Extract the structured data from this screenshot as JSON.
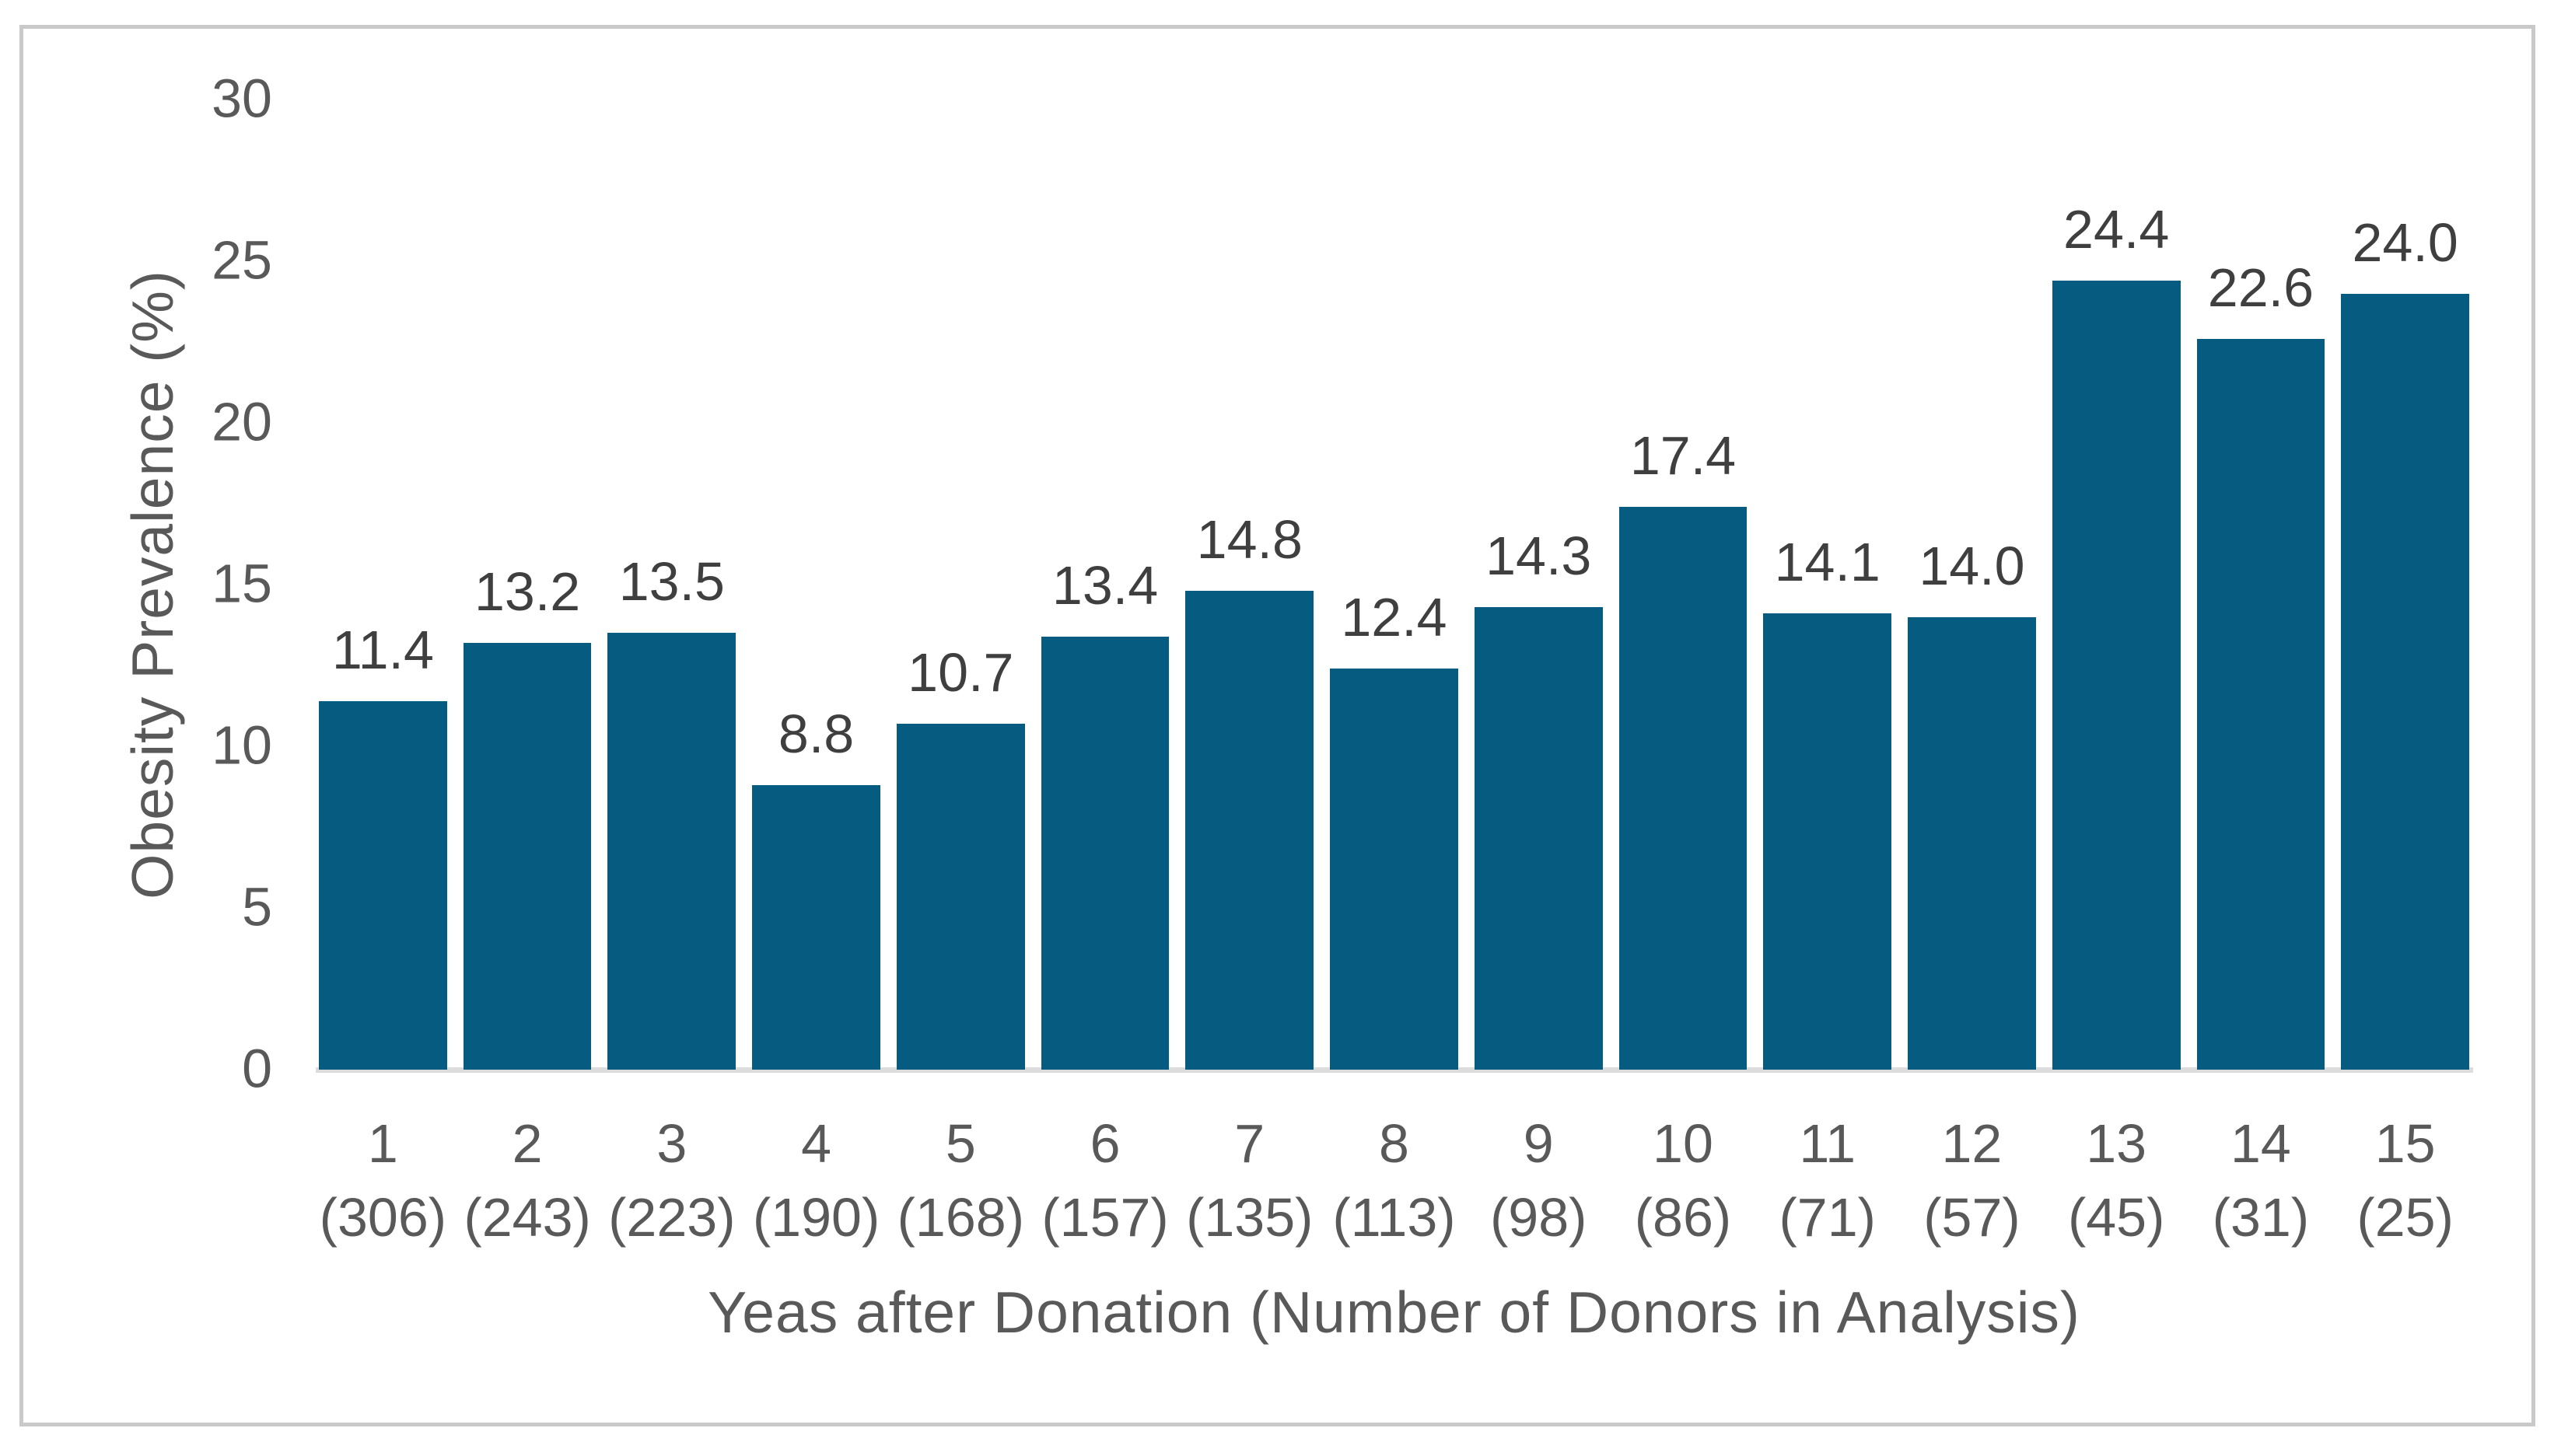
{
  "chart_data": {
    "type": "bar",
    "title": "",
    "categories": [
      "1",
      "2",
      "3",
      "4",
      "5",
      "6",
      "7",
      "8",
      "9",
      "10",
      "11",
      "12",
      "13",
      "14",
      "15"
    ],
    "donor_counts": [
      "(306)",
      "(243)",
      "(223)",
      "(190)",
      "(168)",
      "(157)",
      "(135)",
      "(113)",
      "(98)",
      "(86)",
      "(71)",
      "(57)",
      "(45)",
      "(31)",
      "(25)"
    ],
    "values": [
      11.4,
      13.2,
      13.5,
      8.8,
      10.7,
      13.4,
      14.8,
      12.4,
      14.3,
      17.4,
      14.1,
      14.0,
      24.4,
      22.6,
      24.0
    ],
    "data_labels": [
      "11.4",
      "13.2",
      "13.5",
      "8.8",
      "10.7",
      "13.4",
      "14.8",
      "12.4",
      "14.3",
      "17.4",
      "14.1",
      "14.0",
      "24.4",
      "22.6",
      "24.0"
    ],
    "xlabel": "Yeas after Donation (Number of Donors in Analysis)",
    "ylabel": "Obesity Prevalence (%)",
    "yticks": [
      "0",
      "5",
      "10",
      "15",
      "20",
      "25",
      "30"
    ],
    "ylim": [
      0,
      30
    ],
    "grid": "off",
    "legend": "none",
    "colors": {
      "bar": "#055c80",
      "tick_text": "#595959",
      "data_label_text": "#3f3f3f",
      "axis_line": "#dcdcdc",
      "frame_border": "#c9c9c9",
      "background": "#ffffff"
    }
  }
}
